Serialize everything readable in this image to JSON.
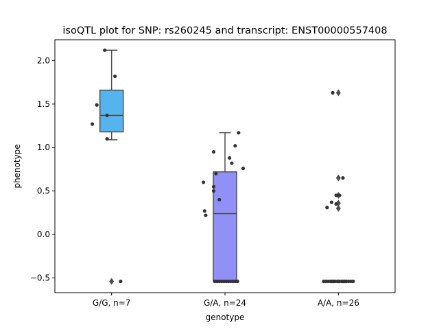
{
  "chart_data": {
    "type": "box",
    "title": "isoQTL plot for SNP: rs260245 and transcript: ENST00000557408",
    "xlabel": "genotype",
    "ylabel": "phenotype",
    "ylim": [
      -0.67,
      2.24
    ],
    "yticks": [
      -0.5,
      0.0,
      0.5,
      1.0,
      1.5,
      2.0
    ],
    "ytick_labels": [
      "−0.5",
      "0.0",
      "0.5",
      "1.0",
      "1.5",
      "2.0"
    ],
    "categories": [
      "G/G, n=7",
      "G/A, n=24",
      "A/A, n=26"
    ],
    "colors": [
      "#55b3ee",
      "#9090f7",
      "#c9a0f0"
    ],
    "edge_color": "#4d4d4d",
    "point_color": "#333333",
    "boxes": [
      {
        "category": "G/G, n=7",
        "q1": 1.18,
        "median": 1.37,
        "q3": 1.66,
        "whisker_low": 1.09,
        "whisker_high": 2.12,
        "outliers": [
          -0.54
        ],
        "points": [
          [
            2.12,
            -0.06
          ],
          [
            1.82,
            0.03
          ],
          [
            1.49,
            -0.13
          ],
          [
            1.37,
            -0.04
          ],
          [
            1.27,
            -0.17
          ],
          [
            1.1,
            -0.04
          ],
          [
            -0.54,
            0.08
          ]
        ]
      },
      {
        "category": "G/A, n=24",
        "q1": -0.54,
        "median": 0.24,
        "q3": 0.72,
        "whisker_low": -0.54,
        "whisker_high": 1.17,
        "outliers": [],
        "points": [
          [
            1.17,
            0.12
          ],
          [
            1.02,
            0.09
          ],
          [
            0.95,
            -0.1
          ],
          [
            0.88,
            0.04
          ],
          [
            0.82,
            0.06
          ],
          [
            0.76,
            0.16
          ],
          [
            0.7,
            -0.08
          ],
          [
            0.6,
            -0.19
          ],
          [
            0.55,
            -0.1
          ],
          [
            0.5,
            -0.1
          ],
          [
            0.4,
            -0.05
          ],
          [
            0.27,
            -0.18
          ],
          [
            0.22,
            -0.17
          ],
          [
            -0.54,
            -0.09
          ],
          [
            -0.54,
            -0.07
          ],
          [
            -0.54,
            -0.05
          ],
          [
            -0.54,
            -0.03
          ],
          [
            -0.54,
            -0.01
          ],
          [
            -0.54,
            0.01
          ],
          [
            -0.54,
            0.03
          ],
          [
            -0.54,
            0.05
          ],
          [
            -0.54,
            0.07
          ],
          [
            -0.54,
            0.09
          ],
          [
            -0.54,
            0.11
          ]
        ]
      },
      {
        "category": "A/A, n=26",
        "q1": -0.54,
        "median": -0.54,
        "q3": -0.54,
        "whisker_low": -0.54,
        "whisker_high": -0.54,
        "outliers": [
          1.63,
          0.65,
          0.45,
          0.36,
          0.3
        ],
        "points": [
          [
            1.63,
            -0.05
          ],
          [
            0.65,
            0.04
          ],
          [
            0.45,
            -0.02
          ],
          [
            0.45,
            0.01
          ],
          [
            0.37,
            -0.06
          ],
          [
            0.35,
            -0.02
          ],
          [
            0.31,
            -0.1
          ],
          [
            -0.54,
            -0.13
          ],
          [
            -0.54,
            -0.11
          ],
          [
            -0.54,
            -0.09
          ],
          [
            -0.54,
            -0.07
          ],
          [
            -0.54,
            -0.05
          ],
          [
            -0.54,
            -0.03
          ],
          [
            -0.54,
            -0.01
          ],
          [
            -0.54,
            0.01
          ],
          [
            -0.54,
            0.03
          ],
          [
            -0.54,
            0.05
          ],
          [
            -0.54,
            0.07
          ],
          [
            -0.54,
            0.09
          ],
          [
            -0.54,
            0.11
          ],
          [
            -0.54,
            0.13
          ],
          [
            -0.54,
            -0.04
          ],
          [
            -0.54,
            0.0
          ],
          [
            -0.54,
            0.04
          ],
          [
            -0.54,
            0.06
          ],
          [
            -0.54,
            -0.06
          ]
        ]
      }
    ]
  }
}
